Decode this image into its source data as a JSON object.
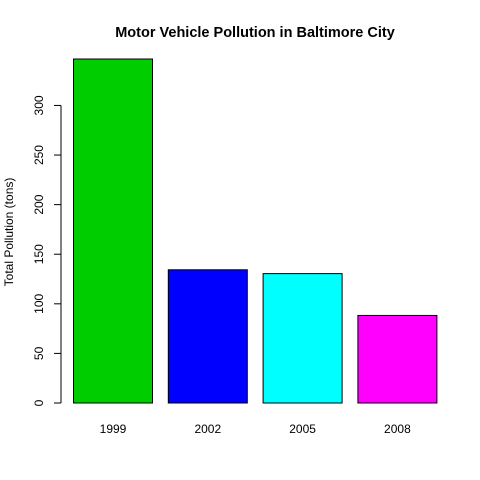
{
  "chart_data": {
    "type": "bar",
    "title": "Motor Vehicle Pollution in Baltimore City",
    "xlabel": "",
    "ylabel": "Total Pollution (tons)",
    "categories": [
      "1999",
      "2002",
      "2005",
      "2008"
    ],
    "values": [
      346.82,
      134.31,
      130.43,
      88.28
    ],
    "colors": [
      "#00CD00",
      "#0000FF",
      "#00FFFF",
      "#FF00FF"
    ],
    "ylim": [
      0,
      346.82
    ],
    "yticks": [
      0,
      50,
      100,
      150,
      200,
      250,
      300
    ],
    "grid": false,
    "legend": "none"
  }
}
